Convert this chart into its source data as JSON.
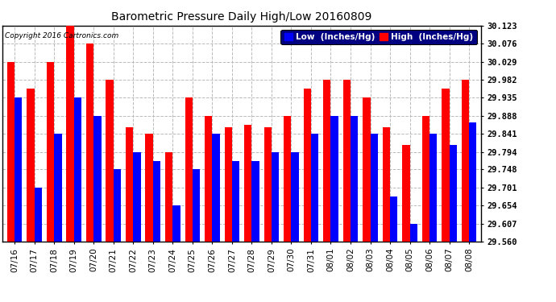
{
  "title": "Barometric Pressure Daily High/Low 20160809",
  "copyright": "Copyright 2016 Cartronics.com",
  "legend_low": "Low  (Inches/Hg)",
  "legend_high": "High  (Inches/Hg)",
  "dates": [
    "07/16",
    "07/17",
    "07/18",
    "07/19",
    "07/20",
    "07/21",
    "07/22",
    "07/23",
    "07/24",
    "07/25",
    "07/26",
    "07/27",
    "07/28",
    "07/29",
    "07/30",
    "07/31",
    "08/01",
    "08/02",
    "08/03",
    "08/04",
    "08/05",
    "08/06",
    "08/07",
    "08/08"
  ],
  "high": [
    30.029,
    29.958,
    30.029,
    30.123,
    30.076,
    29.982,
    29.858,
    29.841,
    29.794,
    29.935,
    29.888,
    29.858,
    29.865,
    29.858,
    29.888,
    29.958,
    29.982,
    29.982,
    29.935,
    29.858,
    29.812,
    29.888,
    29.958,
    29.982
  ],
  "low": [
    29.935,
    29.701,
    29.841,
    29.935,
    29.888,
    29.748,
    29.794,
    29.771,
    29.654,
    29.748,
    29.841,
    29.771,
    29.771,
    29.794,
    29.794,
    29.841,
    29.888,
    29.888,
    29.841,
    29.677,
    29.607,
    29.841,
    29.812,
    29.871
  ],
  "ylim_min": 29.56,
  "ylim_max": 30.123,
  "yticks": [
    29.56,
    29.607,
    29.654,
    29.701,
    29.748,
    29.794,
    29.841,
    29.888,
    29.935,
    29.982,
    30.029,
    30.076,
    30.123
  ],
  "bar_width": 0.38,
  "color_low": "#0000ff",
  "color_high": "#ff0000",
  "background_color": "#ffffff",
  "grid_color": "#bbbbbb",
  "title_color": "#000000",
  "copyright_color": "#000000"
}
